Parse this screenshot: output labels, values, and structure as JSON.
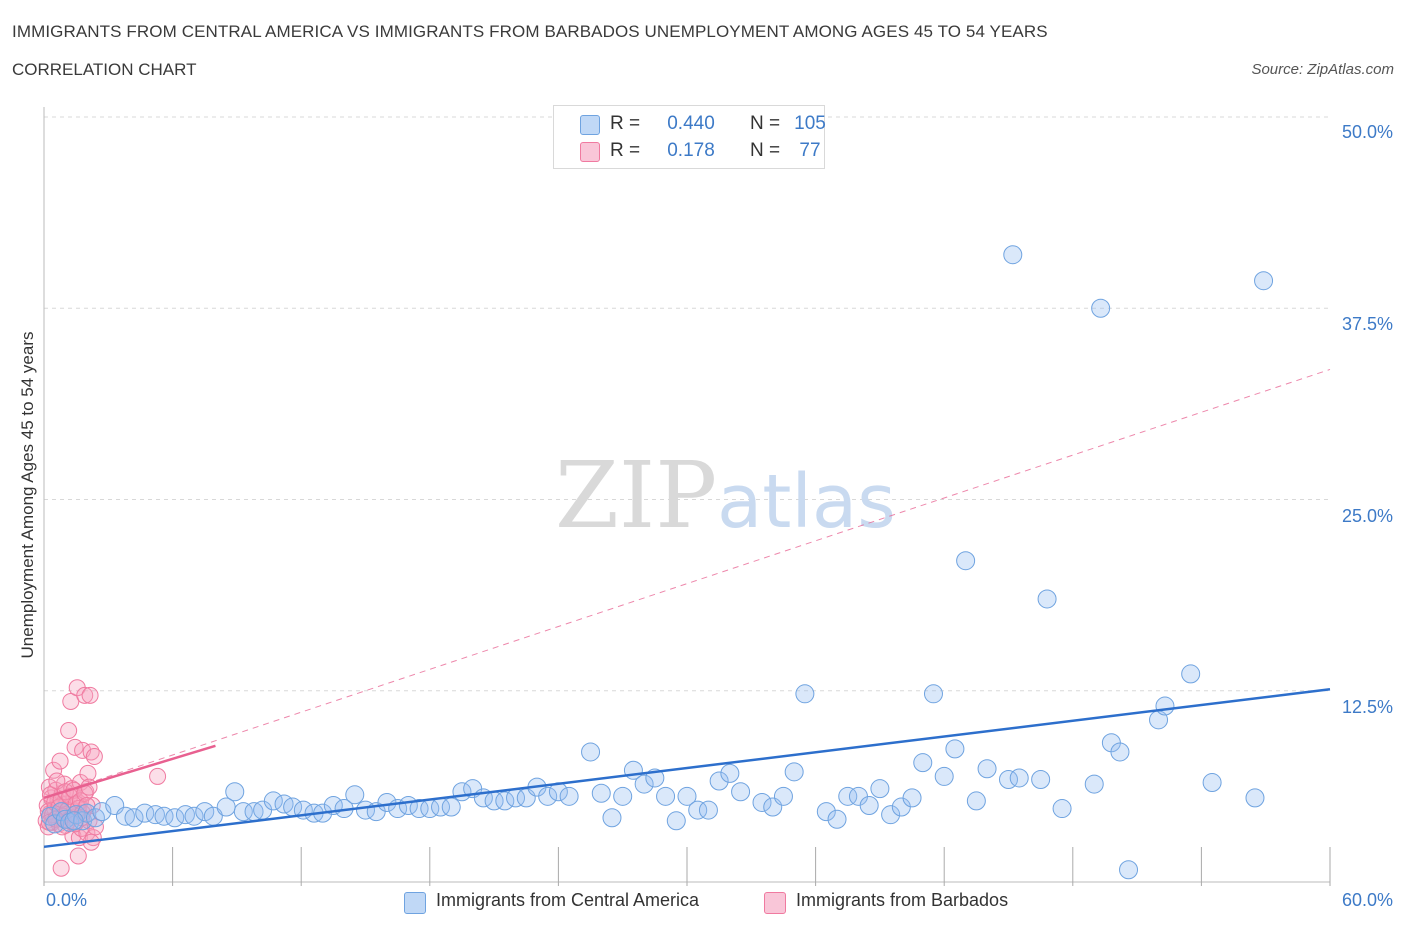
{
  "header": {
    "title": "IMMIGRANTS FROM CENTRAL AMERICA VS IMMIGRANTS FROM BARBADOS UNEMPLOYMENT AMONG AGES 45 TO 54 YEARS",
    "subtitle": "CORRELATION CHART",
    "source": "Source: ZipAtlas.com"
  },
  "watermark": {
    "zip": "ZIP",
    "atlas": "atlas"
  },
  "colors": {
    "blue": "#6fa3e0",
    "blue_fill": "rgba(150,190,240,0.35)",
    "blue_line": "#2d6fcc",
    "pink": "#f07aa0",
    "pink_fill": "rgba(245,160,190,0.35)",
    "pink_line": "#e86090",
    "axis_text": "#3d7ac7",
    "grid": "#d8d8d8"
  },
  "legend": {
    "rows": [
      {
        "series": "blue",
        "r_label": "R =",
        "r_value": "0.440",
        "n_label": "N =",
        "n_value": "105"
      },
      {
        "series": "pink",
        "r_label": "R =",
        "r_value": "0.178",
        "n_label": "N =",
        "n_value": "77"
      }
    ]
  },
  "chart_data": {
    "type": "scatter",
    "title": "IMMIGRANTS FROM CENTRAL AMERICA VS IMMIGRANTS FROM BARBADOS UNEMPLOYMENT AMONG AGES 45 TO 54 YEARS",
    "xlabel": "",
    "ylabel": "Unemployment Among Ages 45 to 54 years",
    "xlim": [
      0,
      60
    ],
    "ylim": [
      0,
      50
    ],
    "x_tick_labels": [
      "0.0%",
      "60.0%"
    ],
    "y_tick_labels": [
      "12.5%",
      "25.0%",
      "37.5%",
      "50.0%"
    ],
    "y_ticks": [
      12.5,
      25,
      37.5,
      50
    ],
    "x_minor_ticks": [
      0,
      6,
      12,
      18,
      24,
      30,
      36,
      42,
      48,
      54,
      60
    ],
    "series": [
      {
        "name": "Immigrants from Central America",
        "color_key": "blue",
        "trend": {
          "x": [
            0,
            60
          ],
          "y": [
            2.3,
            12.6
          ],
          "style": "solid"
        },
        "points": [
          [
            0.3,
            4.3
          ],
          [
            0.5,
            3.8
          ],
          [
            0.8,
            4.6
          ],
          [
            1.0,
            4.1
          ],
          [
            1.2,
            3.9
          ],
          [
            1.5,
            4.4
          ],
          [
            1.8,
            4.0
          ],
          [
            2.0,
            4.5
          ],
          [
            2.4,
            4.2
          ],
          [
            2.7,
            4.6
          ],
          [
            3.3,
            5.0
          ],
          [
            3.8,
            4.3
          ],
          [
            4.2,
            4.2
          ],
          [
            4.7,
            4.5
          ],
          [
            5.2,
            4.4
          ],
          [
            5.6,
            4.3
          ],
          [
            6.1,
            4.2
          ],
          [
            6.6,
            4.4
          ],
          [
            7.0,
            4.3
          ],
          [
            7.5,
            4.6
          ],
          [
            7.9,
            4.3
          ],
          [
            8.5,
            4.9
          ],
          [
            8.9,
            5.9
          ],
          [
            9.3,
            4.6
          ],
          [
            9.8,
            4.6
          ],
          [
            10.2,
            4.7
          ],
          [
            10.7,
            5.3
          ],
          [
            11.2,
            5.1
          ],
          [
            11.6,
            4.9
          ],
          [
            12.1,
            4.7
          ],
          [
            12.6,
            4.5
          ],
          [
            13.0,
            4.5
          ],
          [
            13.5,
            5.0
          ],
          [
            14.0,
            4.8
          ],
          [
            14.5,
            5.7
          ],
          [
            15.0,
            4.7
          ],
          [
            15.5,
            4.6
          ],
          [
            16.0,
            5.2
          ],
          [
            16.5,
            4.8
          ],
          [
            17.0,
            5.0
          ],
          [
            17.5,
            4.8
          ],
          [
            18.0,
            4.8
          ],
          [
            18.5,
            4.9
          ],
          [
            19.0,
            4.9
          ],
          [
            19.5,
            5.9
          ],
          [
            20.0,
            6.1
          ],
          [
            20.5,
            5.5
          ],
          [
            21.0,
            5.3
          ],
          [
            21.5,
            5.3
          ],
          [
            22.0,
            5.5
          ],
          [
            22.5,
            5.5
          ],
          [
            23.0,
            6.2
          ],
          [
            23.5,
            5.6
          ],
          [
            24.0,
            5.9
          ],
          [
            24.5,
            5.6
          ],
          [
            25.5,
            8.5
          ],
          [
            26.0,
            5.8
          ],
          [
            26.5,
            4.2
          ],
          [
            27.0,
            5.6
          ],
          [
            27.5,
            7.3
          ],
          [
            28.0,
            6.4
          ],
          [
            28.5,
            6.8
          ],
          [
            29.0,
            5.6
          ],
          [
            29.5,
            4.0
          ],
          [
            30.0,
            5.6
          ],
          [
            30.5,
            4.7
          ],
          [
            31.0,
            4.7
          ],
          [
            31.5,
            6.6
          ],
          [
            32.0,
            7.1
          ],
          [
            32.5,
            5.9
          ],
          [
            33.5,
            5.2
          ],
          [
            34.0,
            4.9
          ],
          [
            34.5,
            5.6
          ],
          [
            35.0,
            7.2
          ],
          [
            35.5,
            12.3
          ],
          [
            36.5,
            4.6
          ],
          [
            37.0,
            4.1
          ],
          [
            37.5,
            5.6
          ],
          [
            38.0,
            5.6
          ],
          [
            38.5,
            5.0
          ],
          [
            39.0,
            6.1
          ],
          [
            39.5,
            4.4
          ],
          [
            40.0,
            4.9
          ],
          [
            40.5,
            5.5
          ],
          [
            41.0,
            7.8
          ],
          [
            41.5,
            12.3
          ],
          [
            42.0,
            6.9
          ],
          [
            42.5,
            8.7
          ],
          [
            43.0,
            21.0
          ],
          [
            43.5,
            5.3
          ],
          [
            44.0,
            7.4
          ],
          [
            45.0,
            6.7
          ],
          [
            45.5,
            6.8
          ],
          [
            45.2,
            41.0
          ],
          [
            46.5,
            6.7
          ],
          [
            46.8,
            18.5
          ],
          [
            47.5,
            4.8
          ],
          [
            49.0,
            6.4
          ],
          [
            49.3,
            37.5
          ],
          [
            49.8,
            9.1
          ],
          [
            50.2,
            8.5
          ],
          [
            50.6,
            0.8
          ],
          [
            52.0,
            10.6
          ],
          [
            52.3,
            11.5
          ],
          [
            53.5,
            13.6
          ],
          [
            54.5,
            6.5
          ],
          [
            56.5,
            5.5
          ],
          [
            56.9,
            39.3
          ],
          [
            1.4,
            4.0
          ]
        ]
      },
      {
        "name": "Immigrants from Barbados",
        "color_key": "pink",
        "trend": {
          "x": [
            0,
            8
          ],
          "y": [
            5.5,
            8.9
          ],
          "style": "solid",
          "extension": {
            "x": [
              0,
              60
            ],
            "y": [
              5.5,
              33.5
            ],
            "style": "dashed"
          }
        },
        "points": [
          [
            0.1,
            4.0
          ],
          [
            0.15,
            5.0
          ],
          [
            0.2,
            3.6
          ],
          [
            0.25,
            6.2
          ],
          [
            0.3,
            4.5
          ],
          [
            0.35,
            5.5
          ],
          [
            0.4,
            3.9
          ],
          [
            0.45,
            7.3
          ],
          [
            0.5,
            4.8
          ],
          [
            0.55,
            6.0
          ],
          [
            0.6,
            4.2
          ],
          [
            0.65,
            5.3
          ],
          [
            0.7,
            3.8
          ],
          [
            0.75,
            7.9
          ],
          [
            0.8,
            4.6
          ],
          [
            0.85,
            5.8
          ],
          [
            0.9,
            4.1
          ],
          [
            0.95,
            6.4
          ],
          [
            1.0,
            3.7
          ],
          [
            1.05,
            5.1
          ],
          [
            1.1,
            4.4
          ],
          [
            1.15,
            9.9
          ],
          [
            1.2,
            4.9
          ],
          [
            1.25,
            11.8
          ],
          [
            1.3,
            6.1
          ],
          [
            1.35,
            3.0
          ],
          [
            1.4,
            5.6
          ],
          [
            1.45,
            8.8
          ],
          [
            1.5,
            4.3
          ],
          [
            1.55,
            12.7
          ],
          [
            1.6,
            5.2
          ],
          [
            1.65,
            2.9
          ],
          [
            1.7,
            6.5
          ],
          [
            1.75,
            3.5
          ],
          [
            1.8,
            8.6
          ],
          [
            1.85,
            4.7
          ],
          [
            1.9,
            12.2
          ],
          [
            1.95,
            5.9
          ],
          [
            2.0,
            3.2
          ],
          [
            2.05,
            7.1
          ],
          [
            2.1,
            4.0
          ],
          [
            2.15,
            12.2
          ],
          [
            2.2,
            8.5
          ],
          [
            2.25,
            5.0
          ],
          [
            2.3,
            2.9
          ],
          [
            2.35,
            8.2
          ],
          [
            2.4,
            3.6
          ],
          [
            1.6,
            1.7
          ],
          [
            0.8,
            0.9
          ],
          [
            5.3,
            6.9
          ],
          [
            0.2,
            4.6
          ],
          [
            0.3,
            5.7
          ],
          [
            0.4,
            4.4
          ],
          [
            0.5,
            5.2
          ],
          [
            0.6,
            6.6
          ],
          [
            0.7,
            4.9
          ],
          [
            0.8,
            5.4
          ],
          [
            0.9,
            4.3
          ],
          [
            1.0,
            5.9
          ],
          [
            1.1,
            4.7
          ],
          [
            1.2,
            5.6
          ],
          [
            1.3,
            4.2
          ],
          [
            1.4,
            6.0
          ],
          [
            1.5,
            5.1
          ],
          [
            1.6,
            4.8
          ],
          [
            1.7,
            5.3
          ],
          [
            1.8,
            4.5
          ],
          [
            1.9,
            5.8
          ],
          [
            2.0,
            5.0
          ],
          [
            2.1,
            6.2
          ],
          [
            0.25,
            3.9
          ],
          [
            0.55,
            4.1
          ],
          [
            0.85,
            3.6
          ],
          [
            1.15,
            4.0
          ],
          [
            1.45,
            3.8
          ],
          [
            1.75,
            4.2
          ],
          [
            2.2,
            2.6
          ]
        ]
      }
    ],
    "legend_labels": [
      "Immigrants from Central America",
      "Immigrants from Barbados"
    ]
  },
  "axis_labels": {
    "y": "Unemployment Among Ages 45 to 54 years",
    "x_min": "0.0%",
    "x_max": "60.0%",
    "y_ticks": [
      "12.5%",
      "25.0%",
      "37.5%",
      "50.0%"
    ]
  }
}
